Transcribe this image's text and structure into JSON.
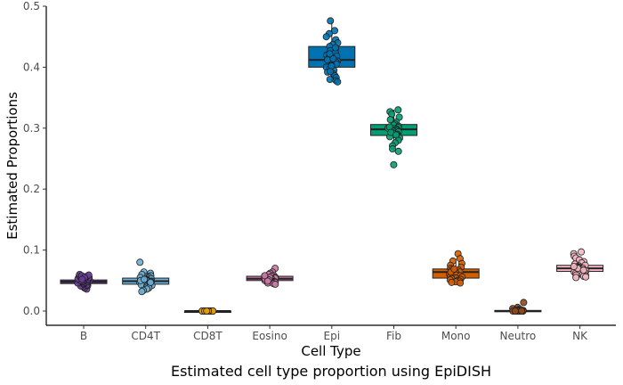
{
  "chart_data": {
    "type": "boxplot",
    "caption": "Estimated cell type proportion using EpiDISH",
    "xlabel": "Cell Type",
    "ylabel": "Estimated Proportions",
    "ylim": [
      0.0,
      0.5
    ],
    "yticks": [
      "0.0",
      "0.1",
      "0.2",
      "0.3",
      "0.4",
      "0.5"
    ],
    "grid": false,
    "legend": "none",
    "categories": [
      {
        "name": "B",
        "color": "#6a3d9a",
        "q1": 0.045,
        "median": 0.048,
        "q3": 0.051,
        "wlo": 0.036,
        "whi": 0.06,
        "points": [
          0.036,
          0.038,
          0.04,
          0.041,
          0.042,
          0.043,
          0.044,
          0.045,
          0.045,
          0.046,
          0.047,
          0.047,
          0.048,
          0.048,
          0.049,
          0.049,
          0.05,
          0.05,
          0.051,
          0.051,
          0.052,
          0.053,
          0.054,
          0.055,
          0.056,
          0.057,
          0.058,
          0.059,
          0.06,
          0.058,
          0.055,
          0.052
        ]
      },
      {
        "name": "CD4T",
        "color": "#6baed6",
        "q1": 0.044,
        "median": 0.049,
        "q3": 0.054,
        "wlo": 0.032,
        "whi": 0.064,
        "points": [
          0.08,
          0.064,
          0.062,
          0.06,
          0.058,
          0.057,
          0.056,
          0.055,
          0.054,
          0.053,
          0.052,
          0.051,
          0.05,
          0.049,
          0.049,
          0.048,
          0.047,
          0.046,
          0.045,
          0.044,
          0.043,
          0.042,
          0.041,
          0.04,
          0.039,
          0.038,
          0.036,
          0.034,
          0.032,
          0.05,
          0.052,
          0.047
        ]
      },
      {
        "name": "CD8T",
        "color": "#e69f00",
        "q1": 0.0,
        "median": 0.0,
        "q3": 0.0,
        "wlo": 0.0,
        "whi": 0.0,
        "points": [
          0.0,
          0.0,
          0.0,
          0.0,
          0.0,
          0.0,
          0.0,
          0.0,
          0.0,
          0.0,
          0.0,
          0.0,
          0.0,
          0.0,
          0.0,
          0.0
        ]
      },
      {
        "name": "Eosino",
        "color": "#cc79a7",
        "q1": 0.05,
        "median": 0.053,
        "q3": 0.057,
        "wlo": 0.044,
        "whi": 0.064,
        "points": [
          0.07,
          0.064,
          0.062,
          0.06,
          0.058,
          0.057,
          0.056,
          0.055,
          0.054,
          0.053,
          0.052,
          0.051,
          0.05,
          0.049,
          0.048,
          0.047,
          0.046,
          0.045,
          0.044,
          0.053,
          0.055,
          0.051,
          0.058,
          0.049
        ]
      },
      {
        "name": "Epi",
        "color": "#0072b2",
        "q1": 0.4,
        "median": 0.412,
        "q3": 0.434,
        "wlo": 0.375,
        "whi": 0.476,
        "points": [
          0.476,
          0.46,
          0.455,
          0.45,
          0.445,
          0.44,
          0.437,
          0.434,
          0.43,
          0.427,
          0.424,
          0.42,
          0.418,
          0.415,
          0.412,
          0.41,
          0.408,
          0.405,
          0.403,
          0.4,
          0.398,
          0.395,
          0.392,
          0.389,
          0.386,
          0.383,
          0.38,
          0.378,
          0.376,
          0.414,
          0.422,
          0.432,
          0.402,
          0.393
        ]
      },
      {
        "name": "Fib",
        "color": "#009e73",
        "q1": 0.288,
        "median": 0.298,
        "q3": 0.306,
        "wlo": 0.262,
        "whi": 0.33,
        "points": [
          0.33,
          0.327,
          0.323,
          0.318,
          0.314,
          0.31,
          0.307,
          0.305,
          0.303,
          0.301,
          0.299,
          0.298,
          0.297,
          0.296,
          0.295,
          0.294,
          0.292,
          0.29,
          0.288,
          0.286,
          0.284,
          0.28,
          0.276,
          0.271,
          0.266,
          0.262,
          0.24,
          0.3,
          0.302,
          0.293,
          0.289
        ]
      },
      {
        "name": "Mono",
        "color": "#d55e00",
        "q1": 0.054,
        "median": 0.064,
        "q3": 0.069,
        "wlo": 0.046,
        "whi": 0.086,
        "points": [
          0.094,
          0.086,
          0.082,
          0.078,
          0.075,
          0.072,
          0.07,
          0.068,
          0.067,
          0.066,
          0.065,
          0.064,
          0.063,
          0.062,
          0.061,
          0.06,
          0.059,
          0.058,
          0.057,
          0.056,
          0.055,
          0.054,
          0.053,
          0.052,
          0.051,
          0.05,
          0.049,
          0.048,
          0.047,
          0.046,
          0.064,
          0.069
        ]
      },
      {
        "name": "Neutro",
        "color": "#8c4a1e",
        "q1": 0.0,
        "median": 0.0,
        "q3": 0.001,
        "wlo": 0.0,
        "whi": 0.002,
        "points": [
          0.014,
          0.006,
          0.004,
          0.003,
          0.002,
          0.002,
          0.001,
          0.001,
          0.001,
          0.0,
          0.0,
          0.0,
          0.0,
          0.0,
          0.0,
          0.0,
          0.0,
          0.0,
          0.0,
          0.0
        ]
      },
      {
        "name": "NK",
        "color": "#f4b6c2",
        "q1": 0.065,
        "median": 0.07,
        "q3": 0.075,
        "wlo": 0.055,
        "whi": 0.09,
        "points": [
          0.097,
          0.094,
          0.09,
          0.087,
          0.084,
          0.081,
          0.079,
          0.077,
          0.075,
          0.074,
          0.073,
          0.072,
          0.071,
          0.07,
          0.069,
          0.068,
          0.067,
          0.066,
          0.065,
          0.064,
          0.063,
          0.062,
          0.061,
          0.06,
          0.059,
          0.058,
          0.057,
          0.056,
          0.055,
          0.07,
          0.073,
          0.067
        ]
      }
    ]
  }
}
